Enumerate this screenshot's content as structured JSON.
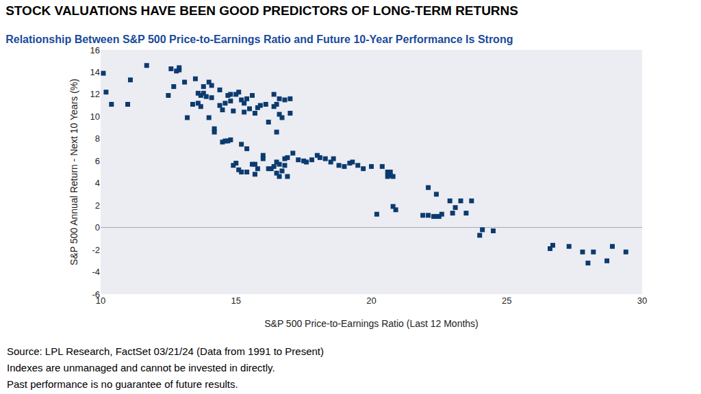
{
  "chart_data": {
    "type": "scatter",
    "title": "STOCK VALUATIONS HAVE BEEN GOOD PREDICTORS OF LONG-TERM RETURNS",
    "subtitle": "Relationship Between S&P 500 Price-to-Earnings Ratio and Future 10-Year Performance Is Strong",
    "x_label": "S&P 500 Price-to-Earnings Ratio (Last 12 Months)",
    "y_label": "S&P 500 Annual Return - Next 10 Years (%)",
    "notes": [
      "Source: LPL Research, FactSet 03/21/24 (Data from 1991 to Present)",
      "Indexes are unmanaged and cannot be invested in directly.",
      "Past performance is no guarantee of future results."
    ],
    "x": [
      10.1,
      10.2,
      10.4,
      11,
      11.1,
      11.7,
      12.5,
      12.6,
      12.7,
      12.8,
      12.9,
      12.9,
      13.1,
      13.2,
      13.4,
      13.5,
      13.6,
      13.6,
      13.7,
      13.7,
      13.8,
      13.8,
      13.9,
      14,
      14,
      14.1,
      14.1,
      14.2,
      14.2,
      14.4,
      14.4,
      14.5,
      14.6,
      14.7,
      14.8,
      14.8,
      14.9,
      15,
      15.1,
      15.2,
      15.3,
      15.3,
      15.4,
      15.5,
      15.6,
      15.7,
      15.8,
      15.9,
      16.1,
      16.2,
      16.4,
      16.4,
      16.5,
      16.5,
      16.6,
      16.6,
      16.7,
      16.8,
      17,
      17,
      14.5,
      14.6,
      14.7,
      14.8,
      14.9,
      15,
      15.1,
      15.2,
      15.2,
      15.4,
      15.4,
      15.6,
      15.7,
      15.7,
      15.8,
      16,
      16,
      16.2,
      16.3,
      16.4,
      16.5,
      16.5,
      16.6,
      16.6,
      16.7,
      16.8,
      16.8,
      16.9,
      16.9,
      17.1,
      17.3,
      17.5,
      17.6,
      17.8,
      18,
      18.1,
      18.3,
      18.5,
      18.6,
      18.8,
      19,
      19.2,
      19.3,
      19.5,
      19.7,
      20,
      20.4,
      20.6,
      20.6,
      20.7,
      20.7,
      20.8,
      20.2,
      20.8,
      20.9,
      21.9,
      22.1,
      22.1,
      22.3,
      22.4,
      22.4,
      22.5,
      22.6,
      22.9,
      23,
      23.1,
      23.3,
      23.5,
      23.7,
      24,
      24.1,
      24.5,
      26.6,
      26.7,
      27.3,
      27.8,
      28,
      28.2,
      28.7,
      28.9,
      29.4
    ],
    "values": [
      13.9,
      12.2,
      11.1,
      11.1,
      13.3,
      14.6,
      11.9,
      14.3,
      12.7,
      14.1,
      14.4,
      14.2,
      13.1,
      9.9,
      11.1,
      13.4,
      12.1,
      11.2,
      11.9,
      10.9,
      12.1,
      12.7,
      11.8,
      9.9,
      13.1,
      12.8,
      11.7,
      8.9,
      8.6,
      12.4,
      11.0,
      10.6,
      11.2,
      11.9,
      12.0,
      11.4,
      10.5,
      12.0,
      12.2,
      11.5,
      10.4,
      11.2,
      11.6,
      10.7,
      11.9,
      10.3,
      10.8,
      11.0,
      11.1,
      9.5,
      12.0,
      10.9,
      11.1,
      8.6,
      11.6,
      10.2,
      9.9,
      11.5,
      11.6,
      10.3,
      7.7,
      7.8,
      7.8,
      7.9,
      5.6,
      5.8,
      5.2,
      7.5,
      5.0,
      7.1,
      5.0,
      5.7,
      5.7,
      4.8,
      5.3,
      6.5,
      6.2,
      5.3,
      5.3,
      5.5,
      5.9,
      4.9,
      4.6,
      5.7,
      5.1,
      6.2,
      5.6,
      6.3,
      4.6,
      6.7,
      6.1,
      6.0,
      5.9,
      6.1,
      6.5,
      6.3,
      6.2,
      5.9,
      6.2,
      5.6,
      5.5,
      5.8,
      5.9,
      5.6,
      5.3,
      5.5,
      5.5,
      5.0,
      4.6,
      4.7,
      5.0,
      4.6,
      1.2,
      1.9,
      1.6,
      1.1,
      3.6,
      1.1,
      1.0,
      3.0,
      1.0,
      1.0,
      1.2,
      2.4,
      1.3,
      1.8,
      2.4,
      1.3,
      2.4,
      -0.7,
      -0.2,
      -0.3,
      -1.9,
      -1.6,
      -1.7,
      -2.2,
      -3.2,
      -2.2,
      -3.0,
      -1.7,
      -2.2
    ],
    "color": "#0b3b6e",
    "marker": "square",
    "xlim": [
      10,
      30
    ],
    "xticks": [
      10,
      15,
      20,
      25,
      30
    ],
    "ylim": [
      -6,
      16
    ],
    "yticks": [
      -6,
      -4,
      -2,
      0,
      2,
      4,
      6,
      8,
      10,
      12,
      14,
      16
    ],
    "grid": false
  }
}
